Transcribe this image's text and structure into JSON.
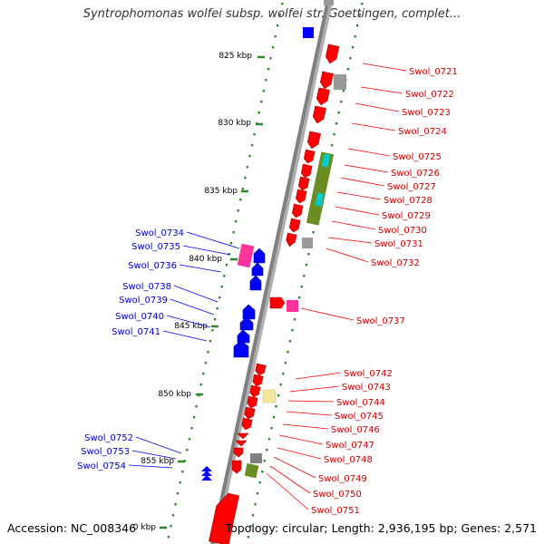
{
  "title": "Syntrophomonas wolfei subsp. wolfei str. Goettingen, complet...",
  "footer": {
    "accession": "Accession: NC_008346",
    "summary": "Topology: circular; Length: 2,936,195 bp; Genes: 2,571"
  },
  "colors": {
    "backbone": "#808080",
    "forward_gene": "#ff0000",
    "reverse_gene": "#0000ff",
    "pink": "#ff3399",
    "olive": "#6b8e23",
    "gray": "#999999",
    "cyan": "#00cccc",
    "beige": "#f5e6a0",
    "tick_dot": "#2a8a2a",
    "label_forward": "#cc0000",
    "label_reverse": "#0000cc"
  },
  "scale_labels": [
    {
      "label": "825 kbp"
    },
    {
      "label": "830 kbp"
    },
    {
      "label": "835 kbp"
    },
    {
      "label": "840 kbp"
    },
    {
      "label": "845 kbp"
    },
    {
      "label": "850 kbp"
    },
    {
      "label": "855 kbp"
    },
    {
      "label": "0 kbp"
    }
  ],
  "forward_labels": [
    "Swol_0721",
    "Swol_0722",
    "Swol_0723",
    "Swol_0724",
    "Swol_0725",
    "Swol_0726",
    "Swol_0727",
    "Swol_0728",
    "Swol_0729",
    "Swol_0730",
    "Swol_0731",
    "Swol_0732",
    "Swol_0737",
    "Swol_0742",
    "Swol_0743",
    "Swol_0744",
    "Swol_0745",
    "Swol_0746",
    "Swol_0747",
    "Swol_0748",
    "Swol_0749",
    "Swol_0750",
    "Swol_0751"
  ],
  "reverse_labels": [
    "Swol_0734",
    "Swol_0735",
    "Swol_0736",
    "Swol_0738",
    "Swol_0739",
    "Swol_0740",
    "Swol_0741",
    "Swol_0752",
    "Swol_0753",
    "Swol_0754"
  ]
}
